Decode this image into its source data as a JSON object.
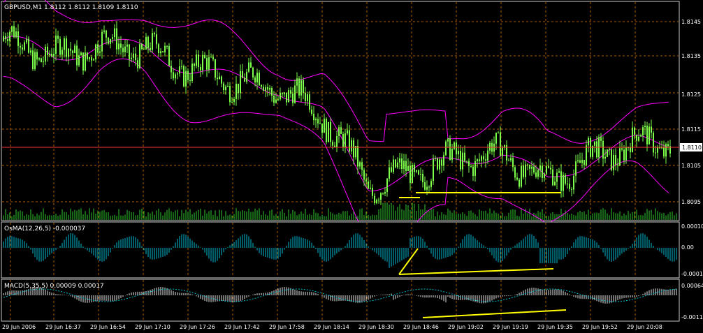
{
  "main": {
    "header": "GBPUSD,M1  1.8112 1.8112 1.8109 1.8110",
    "price_ticks": [
      "1.8145",
      "1.8135",
      "1.8125",
      "1.8115",
      "1.8105",
      "1.8095"
    ],
    "current_price": "1.8110",
    "ylim": [
      1.8092,
      1.8148
    ],
    "colors": {
      "candle": "#7cff4a",
      "bands": "#ff00ff",
      "grid": "#b05a00",
      "price_line": "#ff3333",
      "volume": "#32cd32",
      "trendline": "#ffff00"
    }
  },
  "osma": {
    "header": "OsMA(12,26,5) -0.000037",
    "ticks": [
      "0.00010",
      "0.00",
      "-0.0001"
    ],
    "colors": {
      "bars": "#00bcd4"
    }
  },
  "macd": {
    "header": "MACD(5,35,5) 0.00009 0.00017",
    "ticks": [
      "0.00064",
      "-0.0011"
    ],
    "colors": {
      "bars": "#e6e6e6",
      "signal": "#00bcd4"
    }
  },
  "time_axis": [
    "29 Jun 2006",
    "29 Jun 16:37",
    "29 Jun 16:54",
    "29 Jun 17:10",
    "29 Jun 17:26",
    "29 Jun 17:42",
    "29 Jun 17:58",
    "29 Jun 18:14",
    "29 Jun 18:30",
    "29 Jun 18:46",
    "29 Jun 19:02",
    "29 Jun 19:19",
    "29 Jun 19:35",
    "29 Jun 19:52",
    "29 Jun 20:08"
  ],
  "chart_data": {
    "type": "line",
    "x": [
      "29 Jun 2006",
      "29 Jun 16:37",
      "29 Jun 16:54",
      "29 Jun 17:10",
      "29 Jun 17:26",
      "29 Jun 17:42",
      "29 Jun 17:58",
      "29 Jun 18:14",
      "29 Jun 18:30",
      "29 Jun 18:46",
      "29 Jun 19:02",
      "29 Jun 19:19",
      "29 Jun 19:35",
      "29 Jun 19:52",
      "29 Jun 20:08"
    ],
    "series": [
      {
        "name": "GBPUSD,M1",
        "values": [
          1.8138,
          1.8134,
          1.8137,
          1.8136,
          1.8131,
          1.8128,
          1.8126,
          1.8119,
          1.8101,
          1.8104,
          1.8108,
          1.8109,
          1.8102,
          1.8108,
          1.8112
        ]
      }
    ],
    "ylim": [
      1.8092,
      1.8148
    ]
  }
}
